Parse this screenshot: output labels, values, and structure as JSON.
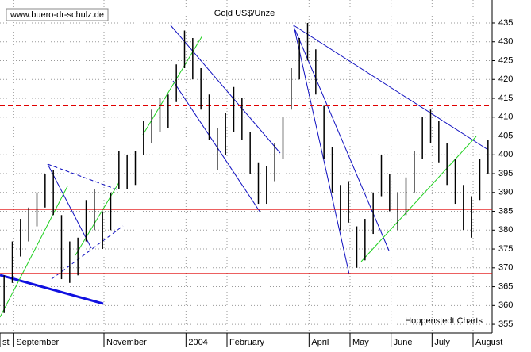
{
  "chart_data": {
    "type": "hilo",
    "title": "Gold US$/Unze",
    "source_url": "www.buero-dr-schulz.de",
    "credit": "Hoppenstedt Charts",
    "categories": [
      "st",
      "September",
      null,
      null,
      null,
      null,
      null,
      null,
      null,
      null,
      null,
      null,
      "November",
      null,
      null,
      null,
      null,
      null,
      null,
      null,
      null,
      null,
      "2004",
      null,
      null,
      null,
      null,
      "February",
      null,
      null,
      null,
      null,
      null,
      null,
      null,
      null,
      null,
      "April",
      null,
      null,
      null,
      null,
      "May",
      null,
      null,
      null,
      null,
      "June",
      null,
      null,
      null,
      null,
      "July",
      null,
      null,
      null,
      null,
      "August",
      null,
      null
    ],
    "series": [
      {
        "name": "high",
        "color": "#000000",
        "values": [
          368,
          377,
          383,
          386,
          390,
          395,
          396,
          384,
          377,
          378,
          388,
          391,
          385,
          390,
          401,
          400,
          401,
          409,
          412,
          415,
          416,
          424,
          433,
          431,
          423,
          416,
          407,
          411,
          418,
          415,
          406,
          398,
          397,
          403,
          410,
          423,
          431,
          435,
          428,
          413,
          402,
          392,
          393,
          381,
          383,
          390,
          400,
          395,
          390,
          394,
          401,
          410,
          412,
          409,
          403,
          399,
          392,
          389,
          399,
          404
        ]
      },
      {
        "name": "low",
        "color": "#000000",
        "values": [
          358,
          366,
          373,
          377,
          381,
          386,
          384,
          367,
          366,
          368,
          377,
          380,
          375,
          380,
          391,
          391,
          392,
          400,
          403,
          406,
          407,
          414,
          423,
          420,
          412,
          404,
          396,
          400,
          406,
          404,
          395,
          387,
          387,
          393,
          399,
          412,
          420,
          425,
          416,
          399,
          390,
          380,
          382,
          370,
          372,
          379,
          389,
          385,
          380,
          384,
          390,
          399,
          403,
          398,
          392,
          387,
          380,
          378,
          388,
          395
        ]
      }
    ],
    "hlines": [
      413,
      385.5,
      368.5
    ],
    "hline_color": "#e00000",
    "ylim": [
      352.7,
      441.1
    ],
    "yticks": [
      355,
      360,
      365,
      370,
      375,
      380,
      385,
      390,
      395,
      400,
      405,
      410,
      415,
      420,
      425,
      430,
      435
    ],
    "grid": true
  }
}
